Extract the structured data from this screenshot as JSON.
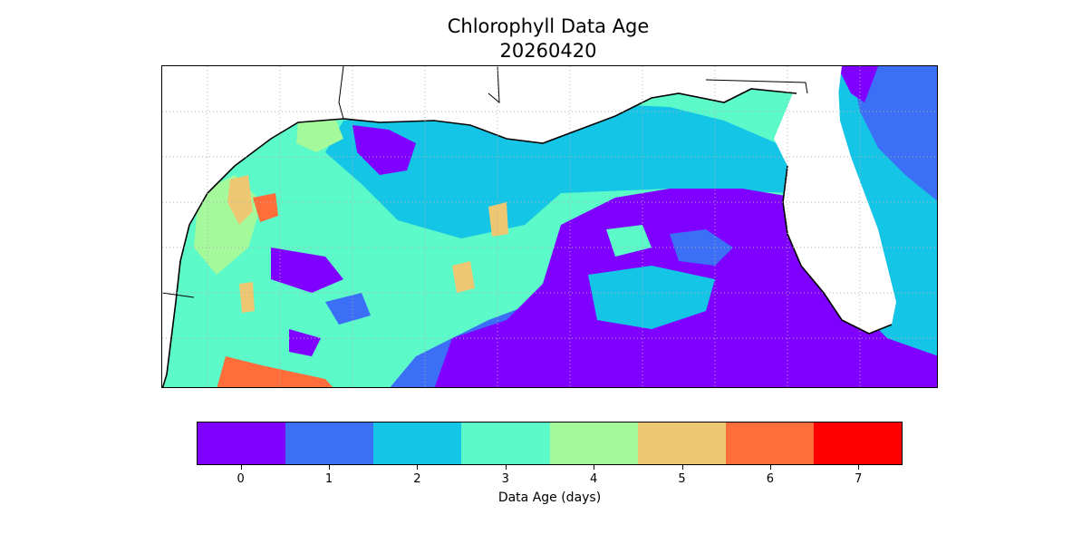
{
  "title": {
    "line1": "Chlorophyll Data Age",
    "line2": "20260420"
  },
  "colorbar": {
    "label": "Data Age (days)",
    "ticks": [
      "0",
      "1",
      "2",
      "3",
      "4",
      "5",
      "6",
      "7"
    ],
    "colors": [
      "#7f00ff",
      "#3b6ff6",
      "#14c5e6",
      "#5cf9c9",
      "#a4f99a",
      "#eec772",
      "#ff6d3a",
      "#ff0000"
    ]
  },
  "map": {
    "land_color": "#ffffff",
    "coastline_color": "#000000",
    "gridline_color": "#b0b0b0",
    "gridlines": "dotted"
  }
}
